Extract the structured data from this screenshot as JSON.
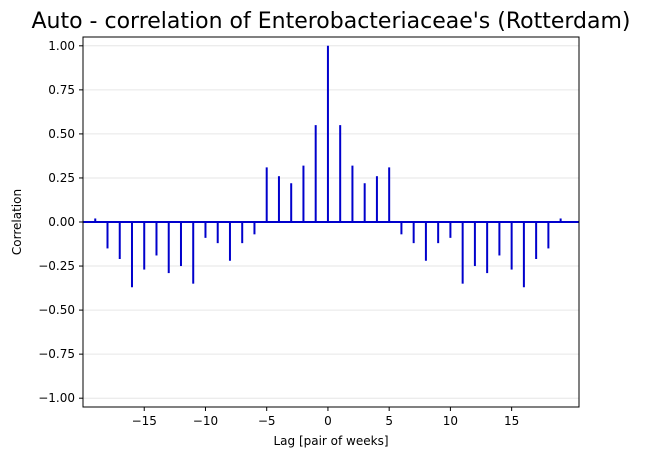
{
  "chart_data": {
    "type": "bar",
    "title": "Auto - correlation of Enterobacteriaceae's (Rotterdam)",
    "xlabel": "Lag [pair of weeks]",
    "ylabel": "Correlation",
    "xlim": [
      -20,
      20.5
    ],
    "ylim": [
      -1.05,
      1.05
    ],
    "xticks": [
      -15,
      -10,
      -5,
      0,
      5,
      10,
      15
    ],
    "xtick_labels": [
      "−15",
      "−10",
      "−5",
      "0",
      "5",
      "10",
      "15"
    ],
    "yticks": [
      1.0,
      0.75,
      0.5,
      0.25,
      0.0,
      -0.25,
      -0.5,
      -0.75,
      -1.0
    ],
    "ytick_labels": [
      "1.00",
      "0.75",
      "0.50",
      "0.25",
      "0.00",
      "−0.25",
      "−0.50",
      "−0.75",
      "−1.00"
    ],
    "grid": "horizontal",
    "legend": "none",
    "series": [
      {
        "x": [
          -19,
          -18,
          -17,
          -16,
          -15,
          -14,
          -13,
          -12,
          -11,
          -10,
          -9,
          -8,
          -7,
          -6,
          -5,
          -4,
          -3,
          -2,
          -1,
          0,
          1,
          2,
          3,
          4,
          5,
          6,
          7,
          8,
          9,
          10,
          11,
          12,
          13,
          14,
          15,
          16,
          17,
          18,
          19
        ],
        "values": [
          0.02,
          -0.15,
          -0.21,
          -0.37,
          -0.27,
          -0.19,
          -0.29,
          -0.25,
          -0.35,
          -0.09,
          -0.12,
          -0.22,
          -0.12,
          -0.07,
          0.31,
          0.26,
          0.22,
          0.32,
          0.55,
          1.0,
          0.55,
          0.32,
          0.22,
          0.26,
          0.31,
          -0.07,
          -0.12,
          -0.22,
          -0.12,
          -0.09,
          -0.35,
          -0.25,
          -0.29,
          -0.19,
          -0.27,
          -0.37,
          -0.21,
          -0.15,
          0.02
        ]
      }
    ],
    "colors": {
      "bars": "#0000cc",
      "zero_line": "#0000cc",
      "grid": "#e6e6e6",
      "axes": "#000000"
    }
  }
}
